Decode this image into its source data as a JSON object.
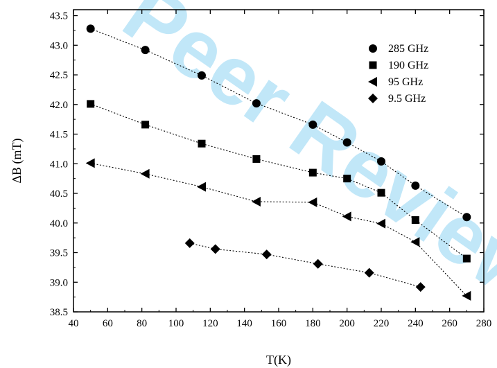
{
  "watermark": {
    "text": "Peer Review",
    "color": "#47b7ec"
  },
  "chart_data": {
    "type": "scatter",
    "title": "",
    "xlabel": "T(K)",
    "ylabel": "ΔB (mT)",
    "xlim": [
      40,
      280
    ],
    "ylim": [
      38.5,
      43.6
    ],
    "xticks": [
      40,
      60,
      80,
      100,
      120,
      140,
      160,
      180,
      200,
      220,
      240,
      260,
      280
    ],
    "yticks": [
      38.5,
      39.0,
      39.5,
      40.0,
      40.5,
      41.0,
      41.5,
      42.0,
      42.5,
      43.0,
      43.5
    ],
    "xtick_labels": [
      "40",
      "60",
      "80",
      "100",
      "120",
      "140",
      "160",
      "180",
      "200",
      "220",
      "240",
      "260",
      "280"
    ],
    "ytick_labels": [
      "38.5",
      "39.0",
      "39.5",
      "40.0",
      "40.5",
      "41.0",
      "41.5",
      "42.0",
      "42.5",
      "43.0",
      "43.5"
    ],
    "grid": false,
    "legend_position": "top-right",
    "series": [
      {
        "name": "285 GHz",
        "marker": "circle",
        "x": [
          50,
          82,
          115,
          147,
          180,
          200,
          220,
          240,
          270
        ],
        "y": [
          43.28,
          42.92,
          42.49,
          42.02,
          41.66,
          41.36,
          41.04,
          40.63,
          40.1
        ]
      },
      {
        "name": "190 GHz",
        "marker": "square",
        "x": [
          50,
          82,
          115,
          147,
          180,
          200,
          220,
          240,
          270
        ],
        "y": [
          42.01,
          41.66,
          41.34,
          41.08,
          40.85,
          40.75,
          40.51,
          40.05,
          39.4
        ]
      },
      {
        "name": "95 GHz",
        "marker": "triangle-left",
        "x": [
          50,
          82,
          115,
          147,
          180,
          200,
          220,
          240,
          270
        ],
        "y": [
          41.01,
          40.83,
          40.61,
          40.36,
          40.35,
          40.11,
          39.99,
          39.68,
          38.77
        ]
      },
      {
        "name": "9.5 GHz",
        "marker": "diamond",
        "x": [
          108,
          123,
          153,
          183,
          213,
          243
        ],
        "y": [
          39.66,
          39.56,
          39.47,
          39.31,
          39.16,
          38.92
        ]
      }
    ]
  }
}
